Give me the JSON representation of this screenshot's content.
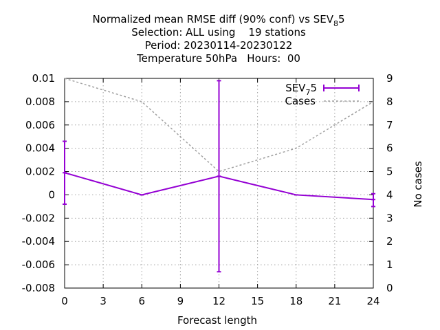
{
  "chart_data": {
    "type": "line",
    "title": {
      "line1_prefix": "Normalized mean RMSE diff (90% conf) vs SEV",
      "line1_sub": "8",
      "line1_suffix": "5",
      "line2": "Selection: ALL using    19 stations",
      "line3": "Period: 20230114-20230122",
      "line4": "Temperature 50hPa   Hours:  00"
    },
    "xlabel": "Forecast length",
    "ylabel_right": "No cases",
    "ylabel_left": "",
    "xlim": [
      0,
      24
    ],
    "ylim": [
      -0.008,
      0.01
    ],
    "y2lim": [
      0,
      9
    ],
    "x_ticks": [
      "0",
      "3",
      "6",
      "9",
      "12",
      "15",
      "18",
      "21",
      "24"
    ],
    "y_ticks": [
      "-0.008",
      "-0.006",
      "-0.004",
      "-0.002",
      "0",
      "0.002",
      "0.004",
      "0.006",
      "0.008",
      "0.01"
    ],
    "y2_ticks": [
      "0",
      "1",
      "2",
      "3",
      "4",
      "5",
      "6",
      "7",
      "8",
      "9"
    ],
    "grid": true,
    "legend_position": "top-right",
    "series": [
      {
        "name_prefix": "SEV",
        "name_sub": "7",
        "name_suffix": "5",
        "axis": "left",
        "style": "line-errorbars",
        "color": "#9400d3",
        "x": [
          0,
          6,
          12,
          18,
          24
        ],
        "y": [
          0.0019,
          0.0,
          0.0016,
          0.0,
          -0.0004
        ],
        "err_low": [
          -0.0008,
          0.0,
          -0.0066,
          0.0,
          -0.001
        ],
        "err_high": [
          0.0046,
          0.0,
          0.0098,
          0.0,
          0.0001
        ]
      },
      {
        "name": "Cases",
        "axis": "right",
        "style": "dashed",
        "color": "#a0a0a0",
        "x": [
          0,
          6,
          12,
          18,
          24
        ],
        "y": [
          9,
          8,
          5,
          6,
          8
        ]
      }
    ]
  }
}
